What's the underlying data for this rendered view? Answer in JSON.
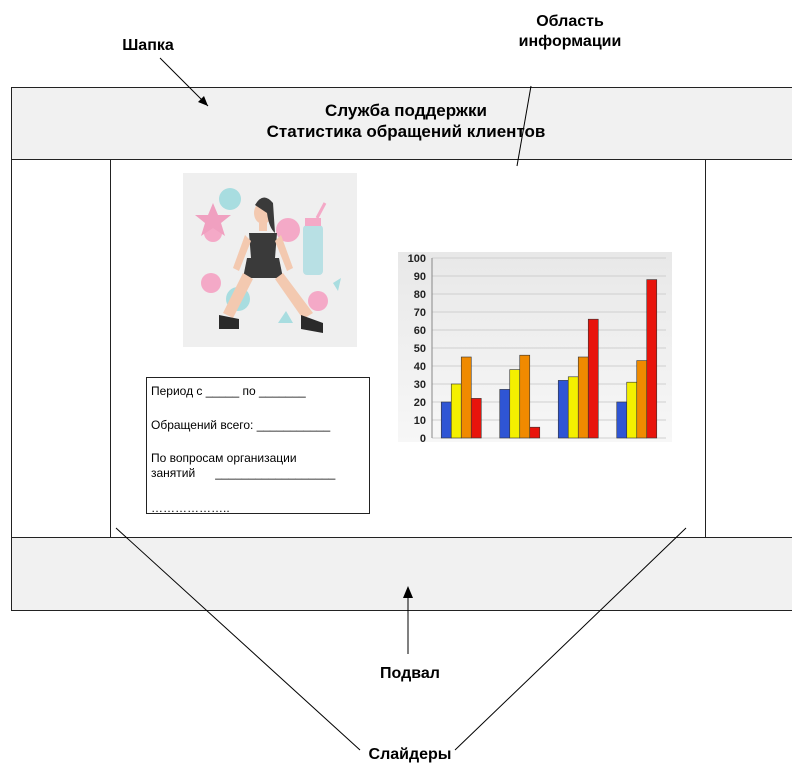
{
  "labels": {
    "header_caption": "Шапка",
    "info_area_caption_line1": "Область",
    "info_area_caption_line2": "информации",
    "footer_caption": "Подвал",
    "sliders_caption": "Слайдеры"
  },
  "header": {
    "line1": "Служба поддержки",
    "line2": "Статистика обращений клиентов"
  },
  "form": {
    "period": "Период с _____ по _______",
    "total": "Обращений всего: ___________",
    "topic_line1": "По вопросам организации",
    "topic_line2": "занятий      __________________",
    "dots": "……………….."
  },
  "colors": {
    "blue": "#2f55d4",
    "yellow": "#f4f000",
    "orange": "#f08a00",
    "red": "#e8140c",
    "panel": "#f1f1f1"
  },
  "chart_data": {
    "type": "bar",
    "categories": [
      "",
      "",
      "",
      ""
    ],
    "series": [
      {
        "values": [
          20,
          27,
          32,
          20
        ],
        "color": "#2f55d4"
      },
      {
        "values": [
          30,
          38,
          34,
          31
        ],
        "color": "#f4f000"
      },
      {
        "values": [
          45,
          46,
          45,
          43
        ],
        "color": "#f08a00"
      },
      {
        "values": [
          22,
          6,
          66,
          88
        ],
        "color": "#e8140c"
      }
    ],
    "y_ticks": [
      "0",
      "10",
      "20",
      "30",
      "40",
      "50",
      "60",
      "70",
      "80",
      "90",
      "100"
    ],
    "ylim": [
      0,
      100
    ],
    "grid": true,
    "legend": "none"
  },
  "illustration": {
    "icon": "fitness-woman-illustration"
  }
}
